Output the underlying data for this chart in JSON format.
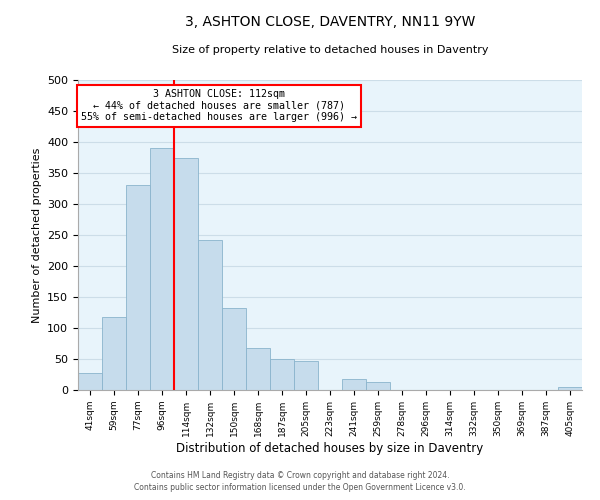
{
  "title": "3, ASHTON CLOSE, DAVENTRY, NN11 9YW",
  "subtitle": "Size of property relative to detached houses in Daventry",
  "xlabel": "Distribution of detached houses by size in Daventry",
  "ylabel": "Number of detached properties",
  "bar_color": "#c6dcec",
  "bar_edge_color": "#8ab4cc",
  "categories": [
    "41sqm",
    "59sqm",
    "77sqm",
    "96sqm",
    "114sqm",
    "132sqm",
    "150sqm",
    "168sqm",
    "187sqm",
    "205sqm",
    "223sqm",
    "241sqm",
    "259sqm",
    "278sqm",
    "296sqm",
    "314sqm",
    "332sqm",
    "350sqm",
    "369sqm",
    "387sqm",
    "405sqm"
  ],
  "values": [
    27,
    118,
    330,
    390,
    375,
    242,
    133,
    68,
    50,
    46,
    0,
    18,
    13,
    0,
    0,
    0,
    0,
    0,
    0,
    0,
    5
  ],
  "ylim": [
    0,
    500
  ],
  "yticks": [
    0,
    50,
    100,
    150,
    200,
    250,
    300,
    350,
    400,
    450,
    500
  ],
  "property_line_x": 3.5,
  "property_line_label": "3 ASHTON CLOSE: 112sqm",
  "annotation_smaller": "← 44% of detached houses are smaller (787)",
  "annotation_larger": "55% of semi-detached houses are larger (996) →",
  "footnote1": "Contains HM Land Registry data © Crown copyright and database right 2024.",
  "footnote2": "Contains public sector information licensed under the Open Government Licence v3.0.",
  "grid_color": "#ccdde8",
  "background_color": "#e8f4fb"
}
